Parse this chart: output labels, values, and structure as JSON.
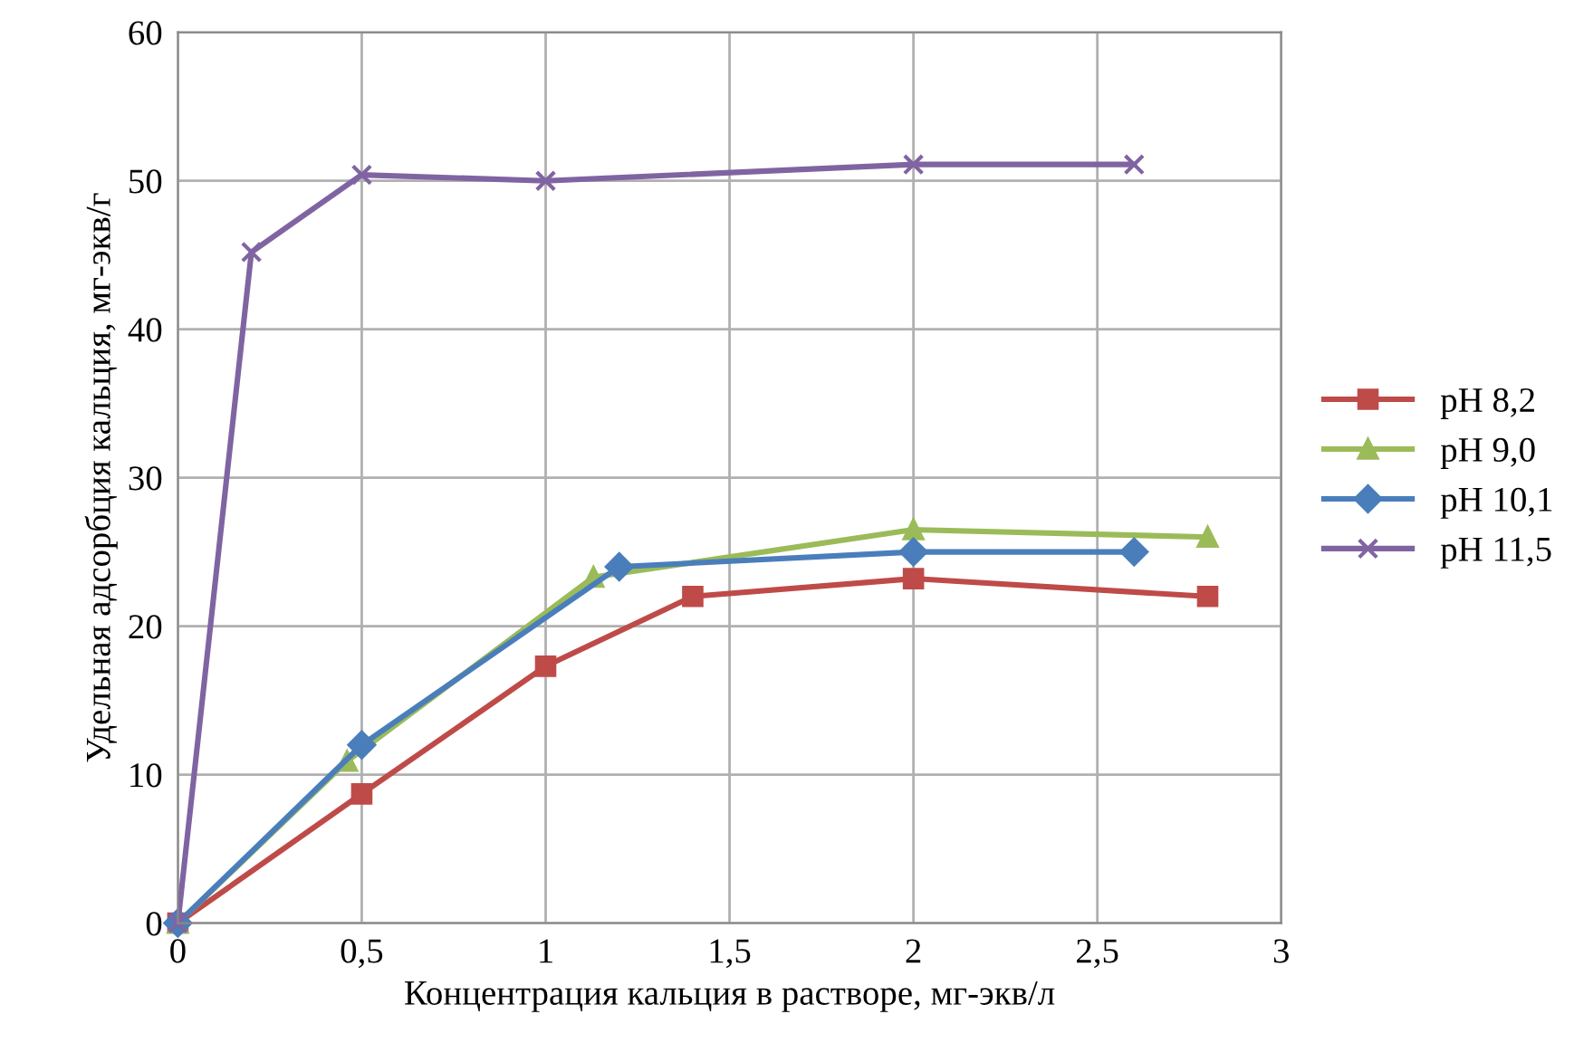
{
  "chart_data": {
    "type": "line",
    "xlabel": "Концентрация кальция в растворе, мг-экв/л",
    "ylabel": "Удельная адсорбция кальция, мг-экв/г",
    "xlim": [
      0,
      3
    ],
    "xticks": [
      0,
      {
        "value": 0.5,
        "label": "0,5"
      },
      1,
      {
        "value": 1.5,
        "label": "1,5"
      },
      2,
      {
        "value": 2.5,
        "label": "2,5"
      },
      3
    ],
    "ylim": [
      0,
      60
    ],
    "yticks": [
      0,
      10,
      20,
      30,
      40,
      50,
      60
    ],
    "grid": true,
    "legend": "right",
    "series": [
      {
        "name": "pH 8,2",
        "color": "#be4b48",
        "marker": "square",
        "x": [
          0,
          0.5,
          1,
          1.4,
          2,
          2.8
        ],
        "values": [
          0,
          8.7,
          17.3,
          22.0,
          23.2,
          22.0
        ]
      },
      {
        "name": "pH 9,0",
        "color": "#9bbb59",
        "marker": "triangle",
        "x": [
          0,
          0.46,
          1.13,
          2,
          2.8
        ],
        "values": [
          0,
          10.9,
          23.3,
          26.5,
          26.0
        ]
      },
      {
        "name": "pH 10,1",
        "color": "#4a7ebb",
        "marker": "diamond",
        "x": [
          0,
          0.5,
          1.2,
          2,
          2.6
        ],
        "values": [
          0,
          12.0,
          24.0,
          25.0,
          25.0
        ]
      },
      {
        "name": "pH 11,5",
        "color": "#8064a2",
        "marker": "cross",
        "x": [
          0,
          0.2,
          0.5,
          1,
          2,
          2.6
        ],
        "values": [
          0,
          45.2,
          50.4,
          50.0,
          51.1,
          51.1
        ]
      }
    ]
  }
}
